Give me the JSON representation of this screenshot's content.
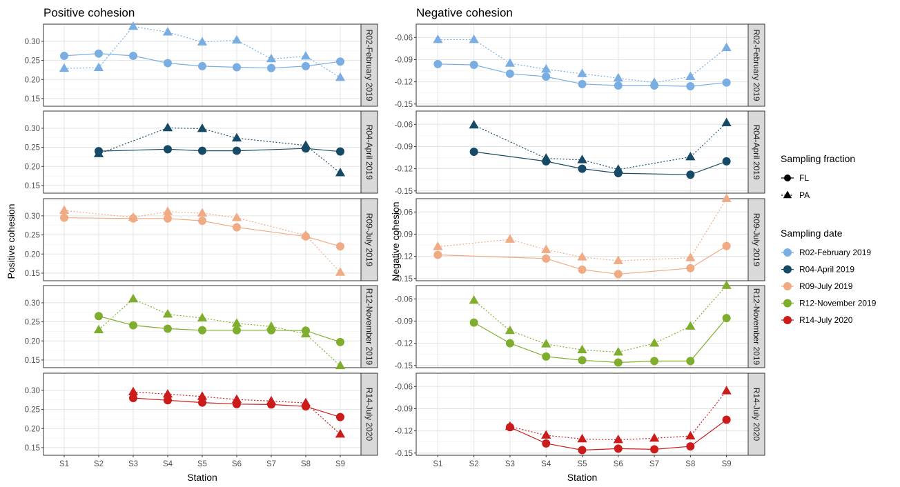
{
  "chart_data": {
    "type": "line",
    "x_categories": [
      "S1",
      "S2",
      "S3",
      "S4",
      "S5",
      "S6",
      "S7",
      "S8",
      "S9"
    ],
    "facet_labels": [
      "R02-February 2019",
      "R04-April 2019",
      "R09-July 2019",
      "R12-November 2019",
      "R14-July 2020"
    ],
    "legend": {
      "placement": "right",
      "fraction_title": "Sampling fraction",
      "fractions": [
        {
          "name": "FL",
          "shape": "circle",
          "line": "solid"
        },
        {
          "name": "PA",
          "shape": "triangle",
          "line": "dotted"
        }
      ],
      "date_title": "Sampling date",
      "dates": [
        {
          "name": "R02-February 2019",
          "color": "#7aaee3"
        },
        {
          "name": "R04-April 2019",
          "color": "#164a66"
        },
        {
          "name": "R09-July 2019",
          "color": "#f1ab84"
        },
        {
          "name": "R12-November 2019",
          "color": "#7fae2e"
        },
        {
          "name": "R14-July 2020",
          "color": "#cb1b1b"
        }
      ]
    },
    "panels": [
      {
        "title": "Positive cohesion",
        "xlabel": "Station",
        "ylabel": "Positive cohesion",
        "ylim": [
          0.13,
          0.345
        ],
        "yticks": [
          0.15,
          0.2,
          0.25,
          0.3
        ],
        "ytick_labels": [
          "0.15",
          "0.20",
          "0.25",
          "0.30"
        ],
        "series": [
          {
            "date": "R02-February 2019",
            "fraction": "FL",
            "x": [
              "S1",
              "S2",
              "S3",
              "S4",
              "S5",
              "S6",
              "S7",
              "S8",
              "S9"
            ],
            "y": [
              0.262,
              0.268,
              0.262,
              0.243,
              0.235,
              0.232,
              0.23,
              0.235,
              0.247
            ]
          },
          {
            "date": "R02-February 2019",
            "fraction": "PA",
            "x": [
              "S1",
              "S2",
              "S3",
              "S4",
              "S5",
              "S6",
              "S7",
              "S8",
              "S9"
            ],
            "y": [
              0.229,
              0.231,
              0.339,
              0.324,
              0.298,
              0.303,
              0.254,
              0.261,
              0.205
            ]
          },
          {
            "date": "R04-April 2019",
            "fraction": "FL",
            "x": [
              "S2",
              "S4",
              "S5",
              "S6",
              "S8",
              "S9"
            ],
            "y": [
              0.24,
              0.245,
              0.241,
              0.241,
              0.247,
              0.239
            ]
          },
          {
            "date": "R04-April 2019",
            "fraction": "PA",
            "x": [
              "S2",
              "S4",
              "S5",
              "S6",
              "S8",
              "S9"
            ],
            "y": [
              0.233,
              0.301,
              0.299,
              0.274,
              0.255,
              0.183
            ]
          },
          {
            "date": "R09-July 2019",
            "fraction": "FL",
            "x": [
              "S1",
              "S3",
              "S4",
              "S5",
              "S6",
              "S8",
              "S9"
            ],
            "y": [
              0.295,
              0.293,
              0.293,
              0.287,
              0.27,
              0.246,
              0.22
            ]
          },
          {
            "date": "R09-July 2019",
            "fraction": "PA",
            "x": [
              "S1",
              "S3",
              "S4",
              "S5",
              "S6",
              "S8",
              "S9"
            ],
            "y": [
              0.314,
              0.296,
              0.311,
              0.307,
              0.295,
              0.249,
              0.152
            ]
          },
          {
            "date": "R12-November 2019",
            "fraction": "FL",
            "x": [
              "S2",
              "S3",
              "S4",
              "S5",
              "S6",
              "S7",
              "S8",
              "S9"
            ],
            "y": [
              0.265,
              0.241,
              0.232,
              0.228,
              0.228,
              0.228,
              0.227,
              0.197
            ]
          },
          {
            "date": "R12-November 2019",
            "fraction": "PA",
            "x": [
              "S2",
              "S3",
              "S4",
              "S5",
              "S6",
              "S7",
              "S8",
              "S9"
            ],
            "y": [
              0.229,
              0.31,
              0.27,
              0.26,
              0.246,
              0.238,
              0.218,
              0.135
            ]
          },
          {
            "date": "R14-July 2020",
            "fraction": "FL",
            "x": [
              "S3",
              "S4",
              "S5",
              "S6",
              "S7",
              "S8",
              "S9"
            ],
            "y": [
              0.28,
              0.274,
              0.268,
              0.264,
              0.263,
              0.258,
              0.23
            ]
          },
          {
            "date": "R14-July 2020",
            "fraction": "PA",
            "x": [
              "S3",
              "S4",
              "S5",
              "S6",
              "S7",
              "S8",
              "S9"
            ],
            "y": [
              0.296,
              0.29,
              0.284,
              0.276,
              0.272,
              0.267,
              0.185
            ]
          }
        ]
      },
      {
        "title": "Negative cohesion",
        "xlabel": "Station",
        "ylabel": "Negative cohesion",
        "ylim": [
          -0.153,
          -0.042
        ],
        "yticks": [
          -0.15,
          -0.12,
          -0.09,
          -0.06
        ],
        "ytick_labels": [
          "-0.15",
          "-0.12",
          "-0.09",
          "-0.06"
        ],
        "series": [
          {
            "date": "R02-February 2019",
            "fraction": "FL",
            "x": [
              "S1",
              "S2",
              "S3",
              "S4",
              "S5",
              "S6",
              "S7",
              "S8",
              "S9"
            ],
            "y": [
              -0.096,
              -0.097,
              -0.109,
              -0.113,
              -0.123,
              -0.125,
              -0.125,
              -0.126,
              -0.121
            ]
          },
          {
            "date": "R02-February 2019",
            "fraction": "PA",
            "x": [
              "S1",
              "S2",
              "S3",
              "S4",
              "S5",
              "S6",
              "S7",
              "S8",
              "S9"
            ],
            "y": [
              -0.063,
              -0.063,
              -0.095,
              -0.103,
              -0.109,
              -0.115,
              -0.121,
              -0.113,
              -0.074
            ]
          },
          {
            "date": "R04-April 2019",
            "fraction": "FL",
            "x": [
              "S2",
              "S4",
              "S5",
              "S6",
              "S8",
              "S9"
            ],
            "y": [
              -0.097,
              -0.11,
              -0.12,
              -0.126,
              -0.128,
              -0.11
            ]
          },
          {
            "date": "R04-April 2019",
            "fraction": "PA",
            "x": [
              "S2",
              "S4",
              "S5",
              "S6",
              "S8",
              "S9"
            ],
            "y": [
              -0.061,
              -0.106,
              -0.108,
              -0.121,
              -0.104,
              -0.058
            ]
          },
          {
            "date": "R09-July 2019",
            "fraction": "FL",
            "x": [
              "S1",
              "S4",
              "S5",
              "S6",
              "S8",
              "S9"
            ],
            "y": [
              -0.118,
              -0.123,
              -0.138,
              -0.144,
              -0.136,
              -0.106
            ]
          },
          {
            "date": "R09-July 2019",
            "fraction": "PA",
            "x": [
              "S1",
              "S3",
              "S4",
              "S5",
              "S6",
              "S8",
              "S9"
            ],
            "y": [
              -0.107,
              -0.097,
              -0.111,
              -0.121,
              -0.126,
              -0.122,
              -0.042
            ]
          },
          {
            "date": "R12-November 2019",
            "fraction": "FL",
            "x": [
              "S2",
              "S3",
              "S4",
              "S5",
              "S6",
              "S7",
              "S8",
              "S9"
            ],
            "y": [
              -0.092,
              -0.12,
              -0.138,
              -0.143,
              -0.146,
              -0.144,
              -0.144,
              -0.086
            ]
          },
          {
            "date": "R12-November 2019",
            "fraction": "PA",
            "x": [
              "S2",
              "S3",
              "S4",
              "S5",
              "S6",
              "S7",
              "S8",
              "S9"
            ],
            "y": [
              -0.062,
              -0.103,
              -0.121,
              -0.129,
              -0.132,
              -0.12,
              -0.097,
              -0.042
            ]
          },
          {
            "date": "R14-July 2020",
            "fraction": "FL",
            "x": [
              "S3",
              "S4",
              "S5",
              "S6",
              "S7",
              "S8",
              "S9"
            ],
            "y": [
              -0.115,
              -0.137,
              -0.146,
              -0.144,
              -0.145,
              -0.141,
              -0.105
            ]
          },
          {
            "date": "R14-July 2020",
            "fraction": "PA",
            "x": [
              "S3",
              "S4",
              "S5",
              "S6",
              "S7",
              "S8",
              "S9"
            ],
            "y": [
              -0.114,
              -0.126,
              -0.131,
              -0.132,
              -0.13,
              -0.127,
              -0.066
            ]
          }
        ]
      }
    ]
  }
}
